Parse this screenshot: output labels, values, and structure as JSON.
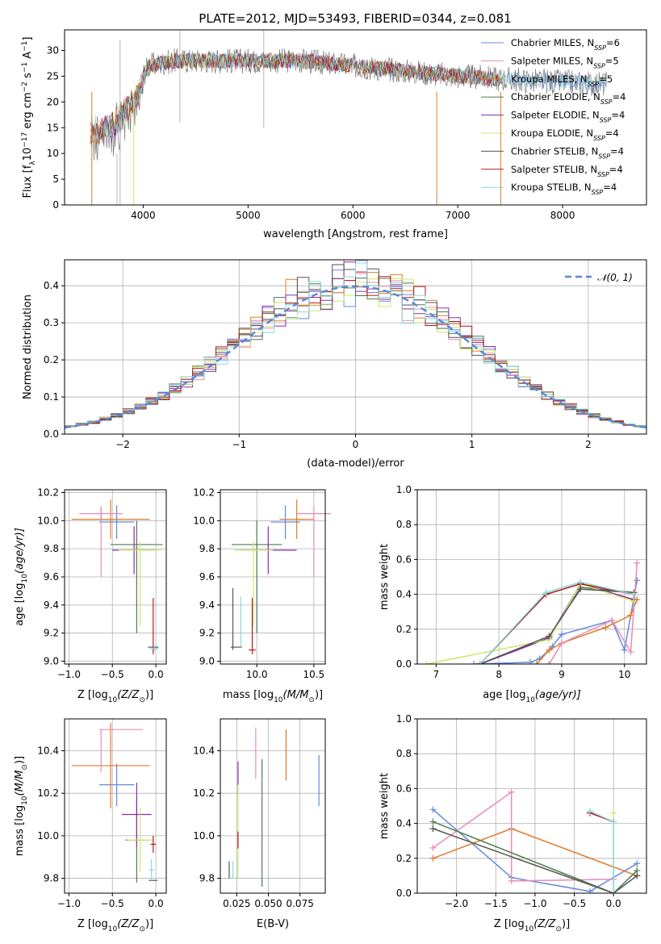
{
  "title": "PLATE=2012, MJD=53493, FIBERID=0344, z=0.081",
  "colors": {
    "chabrier_miles": "#6688dd",
    "salpeter_miles": "#e07a28",
    "kroupa_miles_dark": "#555555",
    "chabrier_elodie": "#4f7a4f",
    "salpeter_elodie": "#8e2aa8",
    "kroupa_elodie": "#c9e86a",
    "chabrier_stelib": "#555555",
    "salpeter_stelib": "#b01818",
    "kroupa_stelib": "#88d8d8",
    "pink": "#e78ab8",
    "normal_curve": "#5b86d6",
    "grid": "#b0b0b0"
  },
  "chart_data": [
    {
      "id": "spectrum",
      "type": "line",
      "xlabel": "wavelength [Angstrom, rest frame]",
      "ylabel": "Flux [f",
      "ylabel_sub": "λ",
      "ylabel_mid": "10",
      "ylabel_sup": "−17",
      "ylabel_end": " erg cm",
      "ylabel_sup2": "−2",
      "ylabel_end2": " s",
      "ylabel_sup3": "−1",
      "ylabel_end3": " A",
      "ylabel_sup4": "−1",
      "ylabel_close": "]",
      "xlim": [
        3250,
        8800
      ],
      "ylim": [
        0,
        34
      ],
      "xticks": [
        4000,
        5000,
        6000,
        7000,
        8000
      ],
      "yticks": [
        0,
        5,
        10,
        15,
        20,
        25,
        30
      ],
      "legend": [
        {
          "label": "Chabrier MILES, N",
          "sub": "SSP",
          "suffix": "=6",
          "color": "#6688dd"
        },
        {
          "label": "Salpeter MILES, N",
          "sub": "SSP",
          "suffix": "=5",
          "color": "#e78ab8"
        },
        {
          "label": "Kroupa MILES, N",
          "sub": "SSP",
          "suffix": "=5",
          "color": "#e07a28"
        },
        {
          "label": "Chabrier ELODIE, N",
          "sub": "SSP",
          "suffix": "=4",
          "color": "#4f7a4f"
        },
        {
          "label": "Salpeter ELODIE, N",
          "sub": "SSP",
          "suffix": "=4",
          "color": "#8e2aa8"
        },
        {
          "label": "Kroupa ELODIE, N",
          "sub": "SSP",
          "suffix": "=4",
          "color": "#c9e86a"
        },
        {
          "label": "Chabrier STELIB, N",
          "sub": "SSP",
          "suffix": "=4",
          "color": "#555555"
        },
        {
          "label": "Salpeter STELIB, N",
          "sub": "SSP",
          "suffix": "=4",
          "color": "#b01818"
        },
        {
          "label": "Kroupa STELIB, N",
          "sub": "SSP",
          "suffix": "=4",
          "color": "#88d8d8"
        }
      ],
      "continuum": [
        [
          3500,
          16
        ],
        [
          3700,
          17
        ],
        [
          3900,
          22
        ],
        [
          4050,
          27
        ],
        [
          4300,
          28
        ],
        [
          4600,
          28
        ],
        [
          5000,
          28
        ],
        [
          5500,
          28
        ],
        [
          6000,
          27
        ],
        [
          6500,
          26
        ],
        [
          7000,
          25
        ],
        [
          7400,
          24.5
        ],
        [
          7800,
          24
        ],
        [
          8400,
          23.5
        ]
      ]
    },
    {
      "id": "residuals",
      "type": "histogram",
      "xlabel": "(data-model)/error",
      "ylabel": "Normed distribution",
      "xlim": [
        -2.5,
        2.5
      ],
      "ylim": [
        0,
        0.47
      ],
      "xticks": [
        -2,
        -1,
        0,
        1,
        2
      ],
      "yticks": [
        0.0,
        0.1,
        0.2,
        0.3,
        0.4
      ],
      "legend": "𝒩(0, 1)",
      "bin_width": 0.1
    },
    {
      "id": "z_age",
      "type": "scatter",
      "xlabel": "Z [log",
      "xlabel_sub": "10",
      "xlabel_end": "(Z/Z",
      "xlabel_sun": "⊙",
      "xlabel_close": ")]",
      "ylabel": "age  [log",
      "ylabel_sub": "10",
      "ylabel_end": "(age/yr)]",
      "xlim": [
        -1.05,
        0.12
      ],
      "ylim": [
        8.98,
        10.22
      ],
      "xticks": [
        -1.0,
        -0.5,
        0.0
      ],
      "yticks": [
        9.0,
        9.2,
        9.4,
        9.6,
        9.8,
        10.0,
        10.2
      ],
      "points": [
        {
          "x": -0.45,
          "y": 9.99,
          "xerr": 0.2,
          "yerr": 0.12,
          "color": "#6688dd"
        },
        {
          "x": -0.52,
          "y": 10.01,
          "xerr": 0.45,
          "yerr": 0.14,
          "color": "#e07a28"
        },
        {
          "x": -0.63,
          "y": 10.05,
          "xerr": 0.25,
          "yerr": 0.05,
          "color": "#e78ab8"
        },
        {
          "x": -0.63,
          "y": 9.85,
          "xerr": 0.0,
          "yerr": 0.25,
          "color": "#e78ab8"
        },
        {
          "x": -0.22,
          "y": 9.83,
          "xerr": 0.3,
          "yerr": 0.0,
          "color": "#4f7a4f"
        },
        {
          "x": -0.22,
          "y": 9.6,
          "xerr": 0.0,
          "yerr": 0.4,
          "color": "#4f7a4f"
        },
        {
          "x": -0.25,
          "y": 9.79,
          "xerr": 0.25,
          "yerr": 0.17,
          "color": "#8e2aa8"
        },
        {
          "x": -0.18,
          "y": 9.79,
          "xerr": 0.25,
          "yerr": 0.0,
          "color": "#c9e86a"
        },
        {
          "x": -0.18,
          "y": 9.55,
          "xerr": 0.0,
          "yerr": 0.3,
          "color": "#c9e86a"
        },
        {
          "x": -0.03,
          "y": 9.1,
          "xerr": 0.06,
          "yerr": 0.0,
          "color": "#555555"
        },
        {
          "x": -0.03,
          "y": 9.25,
          "xerr": 0.0,
          "yerr": 0.2,
          "color": "#b01818"
        },
        {
          "x": -0.02,
          "y": 9.09,
          "xerr": 0.05,
          "yerr": 0.02,
          "color": "#88d8d8"
        }
      ]
    },
    {
      "id": "mass_age",
      "type": "scatter",
      "xlabel": "mass [log",
      "xlabel_sub": "10",
      "xlabel_end": "(M/M",
      "xlabel_sun": "⊙",
      "xlabel_close": ")]",
      "ylabel": "",
      "xlim": [
        9.68,
        10.6
      ],
      "ylim": [
        8.98,
        10.22
      ],
      "xticks": [
        10.0,
        10.5
      ],
      "yticks": [
        9.0,
        9.2,
        9.4,
        9.6,
        9.8,
        10.0,
        10.2
      ],
      "points": [
        {
          "x": 10.25,
          "y": 9.99,
          "xerr": 0.13,
          "yerr": 0.12,
          "color": "#6688dd"
        },
        {
          "x": 10.35,
          "y": 10.01,
          "xerr": 0.15,
          "yerr": 0.14,
          "color": "#e07a28"
        },
        {
          "x": 10.5,
          "y": 10.05,
          "xerr": 0.15,
          "yerr": 0.0,
          "color": "#e78ab8"
        },
        {
          "x": 10.5,
          "y": 9.85,
          "xerr": 0.0,
          "yerr": 0.25,
          "color": "#e78ab8"
        },
        {
          "x": 10.0,
          "y": 9.83,
          "xerr": 0.22,
          "yerr": 0.0,
          "color": "#4f7a4f"
        },
        {
          "x": 10.0,
          "y": 9.6,
          "xerr": 0.0,
          "yerr": 0.4,
          "color": "#4f7a4f"
        },
        {
          "x": 10.1,
          "y": 9.79,
          "xerr": 0.25,
          "yerr": 0.17,
          "color": "#8e2aa8"
        },
        {
          "x": 9.97,
          "y": 9.79,
          "xerr": 0.17,
          "yerr": 0.0,
          "color": "#c9e86a"
        },
        {
          "x": 9.97,
          "y": 9.55,
          "xerr": 0.0,
          "yerr": 0.3,
          "color": "#c9e86a"
        },
        {
          "x": 9.79,
          "y": 9.3,
          "xerr": 0.0,
          "yerr": 0.22,
          "color": "#555555"
        },
        {
          "x": 9.82,
          "y": 9.1,
          "xerr": 0.05,
          "yerr": 0.0,
          "color": "#555555"
        },
        {
          "x": 9.96,
          "y": 9.08,
          "xerr": 0.03,
          "yerr": 0.0,
          "color": "#b01818"
        },
        {
          "x": 9.96,
          "y": 9.25,
          "xerr": 0.0,
          "yerr": 0.2,
          "color": "#b01818"
        },
        {
          "x": 9.86,
          "y": 9.28,
          "xerr": 0.0,
          "yerr": 0.18,
          "color": "#88d8d8"
        }
      ]
    },
    {
      "id": "age_weight",
      "type": "line",
      "xlabel": "age  [log",
      "xlabel_sub": "10",
      "xlabel_end": "(age/yr)]",
      "ylabel": "mass weight",
      "xlim": [
        6.7,
        10.35
      ],
      "ylim": [
        0,
        1.0
      ],
      "xticks": [
        7,
        8,
        9,
        10
      ],
      "yticks": [
        0.0,
        0.2,
        0.4,
        0.6,
        0.8,
        1.0
      ],
      "series": [
        {
          "color": "#6688dd",
          "points": [
            [
              7.6,
              0.0
            ],
            [
              8.5,
              0.01
            ],
            [
              8.65,
              0.03
            ],
            [
              8.85,
              0.1
            ],
            [
              9.0,
              0.17
            ],
            [
              9.8,
              0.25
            ],
            [
              10.0,
              0.08
            ],
            [
              10.2,
              0.48
            ]
          ]
        },
        {
          "color": "#e07a28",
          "points": [
            [
              8.6,
              0.0
            ],
            [
              8.8,
              0.08
            ],
            [
              9.0,
              0.12
            ],
            [
              9.7,
              0.21
            ],
            [
              10.1,
              0.28
            ],
            [
              10.2,
              0.37
            ]
          ]
        },
        {
          "color": "#e78ab8",
          "points": [
            [
              8.8,
              0.0
            ],
            [
              9.0,
              0.12
            ],
            [
              9.8,
              0.25
            ],
            [
              10.1,
              0.07
            ],
            [
              10.2,
              0.58
            ]
          ]
        },
        {
          "color": "#4f7a4f",
          "points": [
            [
              7.7,
              0.0
            ],
            [
              8.8,
              0.15
            ],
            [
              9.3,
              0.44
            ],
            [
              10.15,
              0.41
            ]
          ]
        },
        {
          "color": "#8e2aa8",
          "points": [
            [
              7.7,
              0.0
            ],
            [
              8.8,
              0.15
            ],
            [
              9.3,
              0.46
            ],
            [
              10.15,
              0.37
            ]
          ]
        },
        {
          "color": "#c9e86a",
          "points": [
            [
              6.85,
              0.0
            ],
            [
              8.8,
              0.14
            ],
            [
              9.3,
              0.46
            ],
            [
              10.15,
              0.36
            ]
          ]
        },
        {
          "color": "#555555",
          "points": [
            [
              7.7,
              0.0
            ],
            [
              8.8,
              0.16
            ],
            [
              9.3,
              0.43
            ],
            [
              10.15,
              0.41
            ]
          ]
        },
        {
          "color": "#b01818",
          "points": [
            [
              7.7,
              0.0
            ],
            [
              8.75,
              0.4
            ],
            [
              9.3,
              0.46
            ],
            [
              10.15,
              0.4
            ]
          ]
        },
        {
          "color": "#88d8d8",
          "points": [
            [
              7.7,
              0.0
            ],
            [
              8.75,
              0.41
            ],
            [
              9.3,
              0.47
            ],
            [
              10.15,
              0.4
            ]
          ]
        }
      ]
    },
    {
      "id": "z_mass",
      "type": "scatter",
      "xlabel": "Z [log",
      "xlabel_sub": "10",
      "xlabel_end": "(Z/Z",
      "xlabel_sun": "⊙",
      "xlabel_close": ")]",
      "ylabel": "mass [log",
      "ylabel_sub": "10",
      "ylabel_end": "(M/M",
      "ylabel_sun": "⊙",
      "ylabel_close": ")]",
      "xlim": [
        -1.05,
        0.12
      ],
      "ylim": [
        9.73,
        10.55
      ],
      "xticks": [
        -1.0,
        -0.5,
        0.0
      ],
      "yticks": [
        9.8,
        10.0,
        10.2,
        10.4
      ],
      "points": [
        {
          "x": -0.45,
          "y": 10.24,
          "xerr": 0.2,
          "yerr": 0.1,
          "color": "#6688dd"
        },
        {
          "x": -0.52,
          "y": 10.33,
          "xerr": 0.45,
          "yerr": 0.2,
          "color": "#e07a28"
        },
        {
          "x": -0.4,
          "y": 10.5,
          "xerr": 0.25,
          "yerr": 0.0,
          "color": "#e78ab8"
        },
        {
          "x": -0.63,
          "y": 10.4,
          "xerr": 0.0,
          "yerr": 0.1,
          "color": "#e78ab8"
        },
        {
          "x": -0.22,
          "y": 9.98,
          "xerr": 0.13,
          "yerr": 0.2,
          "color": "#4f7a4f"
        },
        {
          "x": -0.22,
          "y": 10.1,
          "xerr": 0.17,
          "yerr": 0.15,
          "color": "#8e2aa8"
        },
        {
          "x": -0.18,
          "y": 9.98,
          "xerr": 0.15,
          "yerr": 0.15,
          "color": "#c9e86a"
        },
        {
          "x": -0.03,
          "y": 9.79,
          "xerr": 0.05,
          "yerr": 0.0,
          "color": "#555555"
        },
        {
          "x": -0.03,
          "y": 9.96,
          "xerr": 0.03,
          "yerr": 0.04,
          "color": "#b01818"
        },
        {
          "x": -0.05,
          "y": 9.84,
          "xerr": 0.03,
          "yerr": 0.05,
          "color": "#88d8d8"
        }
      ]
    },
    {
      "id": "ebv_mass",
      "type": "scatter",
      "xlabel": "E(B-V)",
      "ylabel": "",
      "xlim": [
        0.012,
        0.095
      ],
      "ylim": [
        9.73,
        10.55
      ],
      "xticks": [
        0.025,
        0.05,
        0.075
      ],
      "xticklabels": [
        "0.025",
        "0.050",
        "0.075"
      ],
      "yticks": [
        9.8,
        10.0,
        10.2,
        10.4
      ],
      "points": [
        {
          "x": 0.09,
          "y": 10.26,
          "xerr": 0.0,
          "yerr": 0.12,
          "color": "#6688dd"
        },
        {
          "x": 0.064,
          "y": 10.38,
          "xerr": 0.0,
          "yerr": 0.12,
          "color": "#e07a28"
        },
        {
          "x": 0.04,
          "y": 10.39,
          "xerr": 0.0,
          "yerr": 0.12,
          "color": "#e78ab8"
        },
        {
          "x": 0.045,
          "y": 10.06,
          "xerr": 0.0,
          "yerr": 0.3,
          "color": "#4f7a4f"
        },
        {
          "x": 0.026,
          "y": 10.27,
          "xerr": 0.0,
          "yerr": 0.08,
          "color": "#8e2aa8"
        },
        {
          "x": 0.026,
          "y": 10.02,
          "xerr": 0.0,
          "yerr": 0.22,
          "color": "#c9e86a"
        },
        {
          "x": 0.019,
          "y": 9.84,
          "xerr": 0.0,
          "yerr": 0.04,
          "color": "#555555"
        },
        {
          "x": 0.026,
          "y": 9.98,
          "xerr": 0.0,
          "yerr": 0.04,
          "color": "#b01818"
        },
        {
          "x": 0.022,
          "y": 9.84,
          "xerr": 0.0,
          "yerr": 0.04,
          "color": "#88d8d8"
        }
      ]
    },
    {
      "id": "z_weight",
      "type": "line",
      "xlabel": "Z [log",
      "xlabel_sub": "10",
      "xlabel_end": "(Z/Z",
      "xlabel_sun": "⊙",
      "xlabel_close": ")]",
      "ylabel": "mass weight",
      "xlim": [
        -2.5,
        0.42
      ],
      "ylim": [
        0,
        1.0
      ],
      "xticks": [
        -2.0,
        -1.5,
        -1.0,
        -0.5,
        0.0
      ],
      "xticklabels": [
        "−2.0",
        "−1.5",
        "−1.0",
        "−0.5",
        "0.0"
      ],
      "yticks": [
        0.0,
        0.2,
        0.4,
        0.6,
        0.8,
        1.0
      ],
      "series": [
        {
          "color": "#6688dd",
          "points": [
            [
              -2.3,
              0.48
            ],
            [
              -1.3,
              0.09
            ],
            [
              -0.3,
              0.01
            ],
            [
              0.3,
              0.17
            ]
          ]
        },
        {
          "color": "#e07a28",
          "points": [
            [
              -2.3,
              0.2
            ],
            [
              -1.3,
              0.37
            ],
            [
              0.3,
              0.1
            ]
          ]
        },
        {
          "color": "#e78ab8",
          "points": [
            [
              -2.3,
              0.26
            ],
            [
              -1.3,
              0.58
            ],
            [
              -1.3,
              0.07
            ],
            [
              0.0,
              0.08
            ]
          ]
        },
        {
          "color": "#4f7a4f",
          "points": [
            [
              -2.3,
              0.41
            ],
            [
              0.0,
              0.0
            ],
            [
              0.3,
              0.13
            ]
          ]
        },
        {
          "color": "#c9e86a",
          "points": [
            [
              -2.3,
              0.37
            ],
            [
              0.0,
              0.0
            ],
            [
              0.0,
              0.46
            ]
          ]
        },
        {
          "color": "#555555",
          "points": [
            [
              -2.3,
              0.37
            ],
            [
              0.0,
              0.0
            ],
            [
              0.3,
              0.1
            ]
          ]
        },
        {
          "color": "#b01818",
          "points": [
            [
              -0.3,
              0.46
            ],
            [
              0.0,
              0.41
            ]
          ]
        },
        {
          "color": "#88d8d8",
          "points": [
            [
              -0.3,
              0.47
            ],
            [
              0.0,
              0.41
            ],
            [
              0.0,
              0.0
            ]
          ]
        }
      ]
    }
  ]
}
